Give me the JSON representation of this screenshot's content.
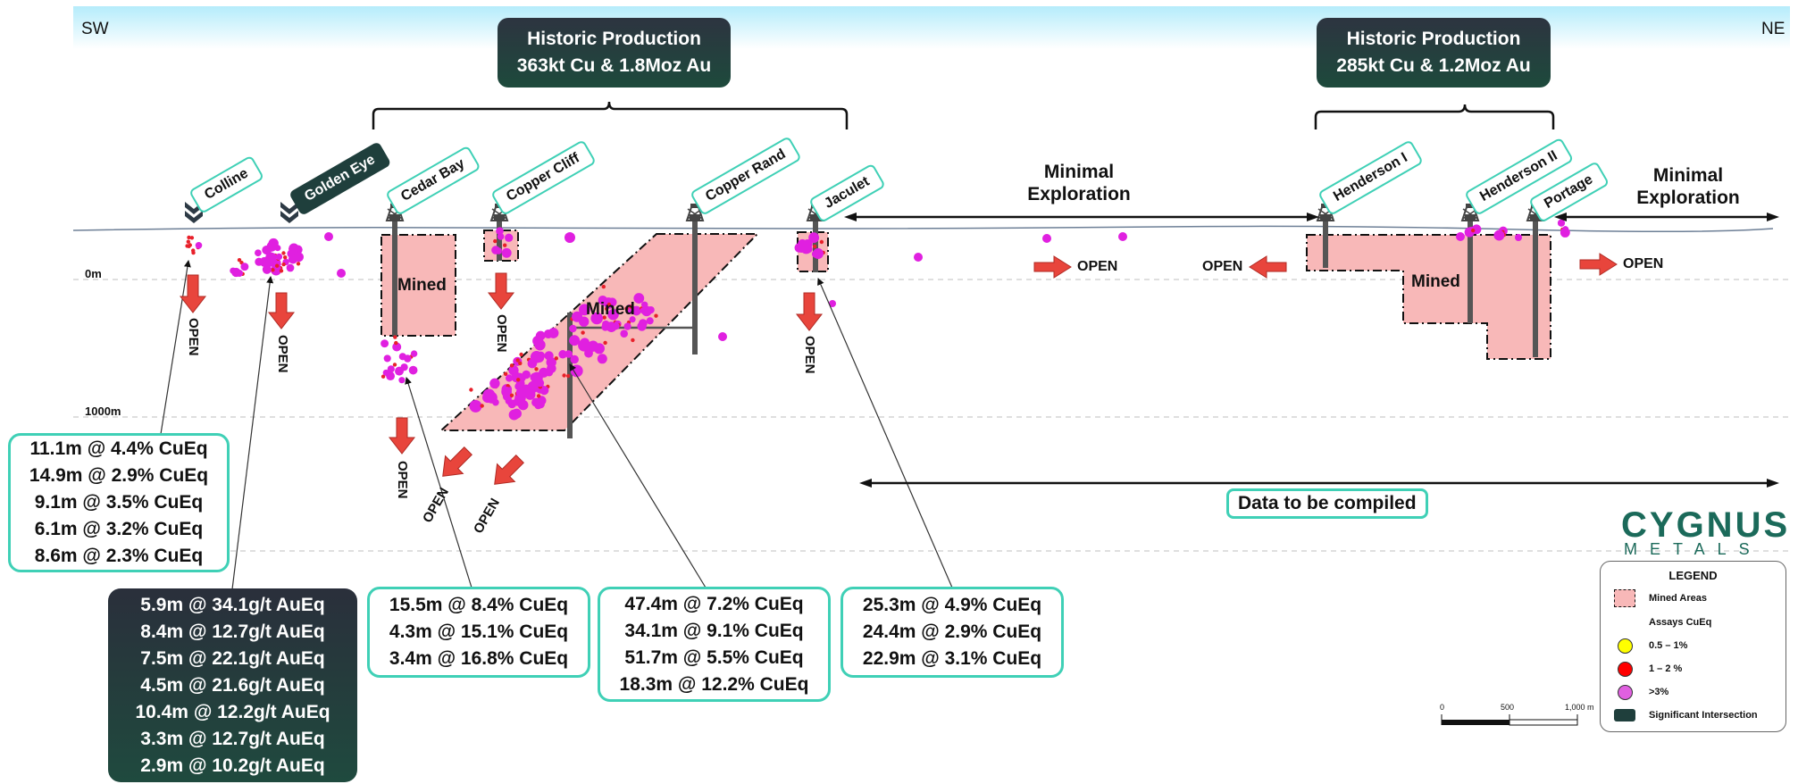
{
  "directions": {
    "left": "SW",
    "right": "NE"
  },
  "depths": {
    "top": "0m",
    "bottom": "1000m"
  },
  "historic_production": [
    {
      "title": "Historic Production",
      "value": "363kt Cu & 1.8Moz Au"
    },
    {
      "title": "Historic Production",
      "value": "285kt Cu & 1.2Moz Au"
    }
  ],
  "deposits": [
    "Colline",
    "Golden Eye",
    "Cedar Bay",
    "Copper Cliff",
    "Copper Rand",
    "Jaculet",
    "Henderson I",
    "Henderson II",
    "Portage"
  ],
  "minimal_exploration": "Minimal Exploration",
  "data_to_compile": "Data to be compiled",
  "mined_label": "Mined",
  "open_label": "OPEN",
  "intersections": {
    "colline": [
      "11.1m @ 4.4% CuEq",
      "14.9m @ 2.9% CuEq",
      "9.1m @ 3.5% CuEq",
      "6.1m @ 3.2% CuEq",
      "8.6m @ 2.3% CuEq"
    ],
    "golden_eye": [
      "5.9m @ 34.1g/t AuEq",
      "8.4m @ 12.7g/t AuEq",
      "7.5m @ 22.1g/t AuEq",
      "4.5m @ 21.6g/t AuEq",
      "10.4m @ 12.2g/t AuEq",
      "3.3m @ 12.7g/t AuEq",
      "2.9m @ 10.2g/t AuEq"
    ],
    "cedar_bay": [
      "15.5m @ 8.4% CuEq",
      "4.3m @ 15.1% CuEq",
      "3.4m @ 16.8% CuEq"
    ],
    "copper_rand": [
      "47.4m @ 7.2% CuEq",
      "34.1m @ 9.1% CuEq",
      "51.7m @ 5.5% CuEq",
      "18.3m @ 12.2% CuEq"
    ],
    "jaculet": [
      "25.3m @ 4.9% CuEq",
      "24.4m @ 2.9% CuEq",
      "22.9m @ 3.1% CuEq"
    ]
  },
  "logo": {
    "line1": "CYGNUS",
    "line2": "METALS"
  },
  "legend": {
    "title": "LEGEND",
    "mined_areas": "Mined Areas",
    "assays": "Assays CuEq",
    "items": [
      {
        "label": "0.5 – 1%",
        "color": "#ffff00"
      },
      {
        "label": "1 – 2 %",
        "color": "#ff0000"
      },
      {
        "label": ">3%",
        "color": "#e060e0"
      }
    ],
    "significant": "Significant Intersection"
  },
  "scale_bar": {
    "labels": [
      "0",
      "500",
      "1,000 m"
    ]
  },
  "colors": {
    "mined_fill": "#f8b8b8",
    "teal": "#3fd0b6",
    "arrow": "#e8453c",
    "dark": "#1f3f3c",
    "magenta": "#e020e0"
  }
}
